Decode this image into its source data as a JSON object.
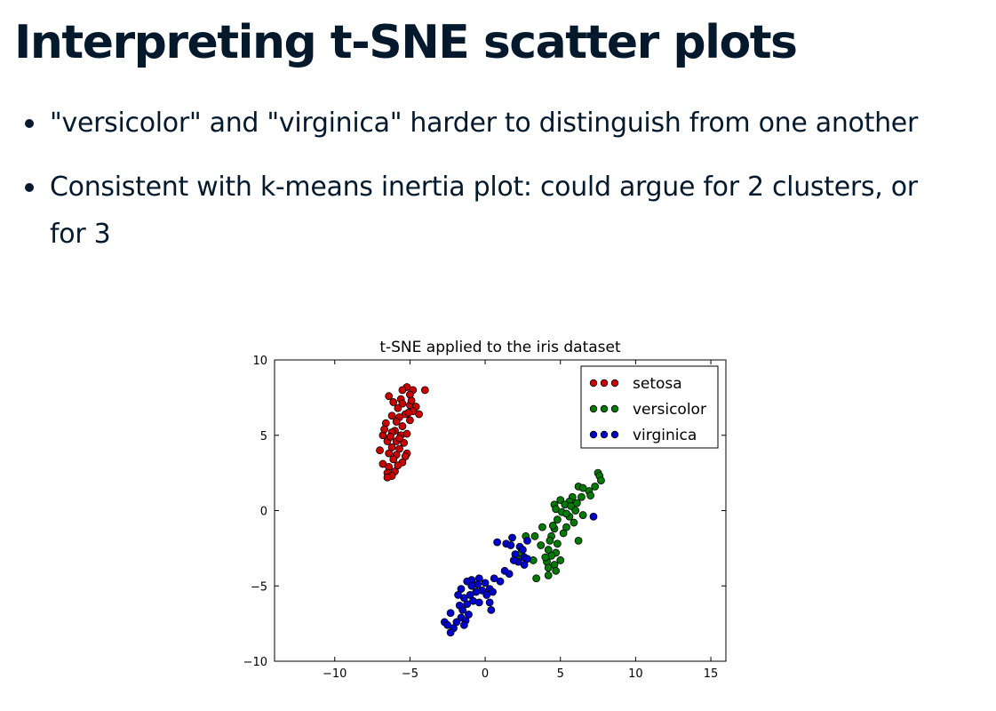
{
  "slide": {
    "title": "Interpreting t-SNE scatter plots",
    "bullets": [
      "\"versicolor\" and \"virginica\" harder to distinguish from one another",
      "Consistent with k-means inertia plot: could argue for 2 clusters, or for 3"
    ]
  },
  "chart_data": {
    "type": "scatter",
    "title": "t-SNE applied to the iris dataset",
    "xlabel": "",
    "ylabel": "",
    "xlim": [
      -14,
      16
    ],
    "ylim": [
      -10,
      10
    ],
    "x_ticks": [
      -10,
      -5,
      0,
      5,
      10,
      15
    ],
    "y_ticks": [
      -10,
      -5,
      0,
      5,
      10
    ],
    "x_tick_labels": [
      "−10",
      "−5",
      "0",
      "5",
      "10",
      "15"
    ],
    "y_tick_labels": [
      "−10",
      "−5",
      "0",
      "5",
      "10"
    ],
    "grid": false,
    "legend_position": "top-right",
    "series": [
      {
        "name": "setosa",
        "color": "#cc0000",
        "points": [
          [
            -6.4,
            7.6
          ],
          [
            -5.6,
            7.4
          ],
          [
            -5.2,
            8.2
          ],
          [
            -4.8,
            8.0
          ],
          [
            -4.0,
            8.0
          ],
          [
            -5.0,
            7.7
          ],
          [
            -5.5,
            7.1
          ],
          [
            -5.0,
            7.0
          ],
          [
            -4.6,
            6.9
          ],
          [
            -4.4,
            6.4
          ],
          [
            -4.8,
            6.6
          ],
          [
            -5.8,
            6.8
          ],
          [
            -5.3,
            6.4
          ],
          [
            -6.2,
            6.3
          ],
          [
            -5.7,
            6.2
          ],
          [
            -5.0,
            6.0
          ],
          [
            -6.6,
            5.8
          ],
          [
            -5.5,
            5.6
          ],
          [
            -6.0,
            5.3
          ],
          [
            -6.8,
            5.0
          ],
          [
            -6.2,
            5.2
          ],
          [
            -5.6,
            5.0
          ],
          [
            -5.2,
            5.1
          ],
          [
            -6.5,
            4.6
          ],
          [
            -5.9,
            4.6
          ],
          [
            -5.4,
            4.5
          ],
          [
            -6.2,
            4.2
          ],
          [
            -5.7,
            4.1
          ],
          [
            -7.0,
            4.0
          ],
          [
            -6.4,
            3.8
          ],
          [
            -5.9,
            3.7
          ],
          [
            -5.2,
            3.8
          ],
          [
            -6.1,
            3.4
          ],
          [
            -6.8,
            3.1
          ],
          [
            -5.5,
            3.2
          ],
          [
            -6.4,
            2.9
          ],
          [
            -6.0,
            2.6
          ],
          [
            -6.5,
            2.5
          ],
          [
            -6.2,
            2.3
          ],
          [
            -6.5,
            2.2
          ],
          [
            -5.8,
            3.0
          ],
          [
            -5.3,
            3.6
          ],
          [
            -6.7,
            5.4
          ],
          [
            -5.9,
            5.9
          ],
          [
            -5.1,
            6.5
          ],
          [
            -4.9,
            7.3
          ],
          [
            -5.5,
            8.0
          ],
          [
            -6.1,
            7.2
          ],
          [
            -5.7,
            4.8
          ],
          [
            -6.3,
            4.9
          ]
        ]
      },
      {
        "name": "versicolor",
        "color": "#007a00",
        "points": [
          [
            7.5,
            2.5
          ],
          [
            7.6,
            2.3
          ],
          [
            7.3,
            1.6
          ],
          [
            6.9,
            1.3
          ],
          [
            6.2,
            1.6
          ],
          [
            6.5,
            1.5
          ],
          [
            7.0,
            1.0
          ],
          [
            6.4,
            0.9
          ],
          [
            5.8,
            0.9
          ],
          [
            5.6,
            0.6
          ],
          [
            5.0,
            0.7
          ],
          [
            5.3,
            0.4
          ],
          [
            4.6,
            0.4
          ],
          [
            4.7,
            0.1
          ],
          [
            5.7,
            0.3
          ],
          [
            6.0,
            0.0
          ],
          [
            5.1,
            -0.1
          ],
          [
            6.5,
            -0.3
          ],
          [
            5.6,
            -0.4
          ],
          [
            4.8,
            -0.6
          ],
          [
            3.8,
            -1.1
          ],
          [
            4.6,
            -1.2
          ],
          [
            5.2,
            -1.5
          ],
          [
            4.4,
            -1.7
          ],
          [
            4.8,
            -2.2
          ],
          [
            4.3,
            -2.0
          ],
          [
            3.3,
            -1.7
          ],
          [
            3.7,
            -2.3
          ],
          [
            4.2,
            -2.6
          ],
          [
            6.2,
            -2.0
          ],
          [
            4.7,
            -2.8
          ],
          [
            4.4,
            -3.0
          ],
          [
            5.0,
            -3.3
          ],
          [
            4.1,
            -3.4
          ],
          [
            2.4,
            -2.8
          ],
          [
            2.7,
            -1.7
          ],
          [
            3.2,
            -3.3
          ],
          [
            4.6,
            -3.6
          ],
          [
            4.2,
            -3.8
          ],
          [
            4.7,
            -4.0
          ],
          [
            4.2,
            -4.3
          ],
          [
            3.4,
            -4.5
          ],
          [
            2.1,
            -3.2
          ],
          [
            7.7,
            2.0
          ],
          [
            6.1,
            0.5
          ],
          [
            5.4,
            -0.2
          ],
          [
            5.9,
            -0.8
          ],
          [
            4.5,
            -1.0
          ],
          [
            4.0,
            -3.1
          ],
          [
            5.4,
            -1.1
          ]
        ]
      },
      {
        "name": "virginica",
        "color": "#0000cc",
        "points": [
          [
            7.2,
            -0.4
          ],
          [
            2.8,
            -2.0
          ],
          [
            2.3,
            -2.4
          ],
          [
            1.8,
            -1.8
          ],
          [
            1.4,
            -2.2
          ],
          [
            0.8,
            -2.1
          ],
          [
            1.7,
            -2.3
          ],
          [
            2.5,
            -2.6
          ],
          [
            2.0,
            -2.9
          ],
          [
            2.6,
            -3.1
          ],
          [
            2.2,
            -3.4
          ],
          [
            1.9,
            -3.3
          ],
          [
            2.6,
            -3.6
          ],
          [
            1.6,
            -4.2
          ],
          [
            0.6,
            -4.5
          ],
          [
            1.0,
            -4.7
          ],
          [
            0.0,
            -4.8
          ],
          [
            -0.4,
            -4.5
          ],
          [
            -0.9,
            -4.6
          ],
          [
            -1.2,
            -4.7
          ],
          [
            -0.5,
            -4.9
          ],
          [
            0.3,
            -5.2
          ],
          [
            -0.2,
            -5.3
          ],
          [
            0.5,
            -5.4
          ],
          [
            -0.6,
            -5.4
          ],
          [
            -1.6,
            -5.2
          ],
          [
            -1.0,
            -5.6
          ],
          [
            -1.4,
            -5.8
          ],
          [
            -1.8,
            -5.6
          ],
          [
            -0.8,
            -6.0
          ],
          [
            -0.4,
            -6.1
          ],
          [
            -1.2,
            -6.2
          ],
          [
            -1.7,
            -6.3
          ],
          [
            0.3,
            -6.1
          ],
          [
            0.4,
            -6.6
          ],
          [
            -1.1,
            -6.9
          ],
          [
            -1.6,
            -7.1
          ],
          [
            -2.3,
            -6.8
          ],
          [
            -1.3,
            -7.3
          ],
          [
            -1.9,
            -7.4
          ],
          [
            -2.7,
            -7.4
          ],
          [
            -1.4,
            -7.6
          ],
          [
            -2.1,
            -7.8
          ],
          [
            -2.3,
            -8.1
          ],
          [
            -2.5,
            -7.6
          ],
          [
            -0.9,
            -5.0
          ],
          [
            0.1,
            -5.6
          ],
          [
            2.8,
            -3.2
          ],
          [
            1.3,
            -4.0
          ],
          [
            -1.5,
            -6.6
          ]
        ]
      }
    ]
  }
}
